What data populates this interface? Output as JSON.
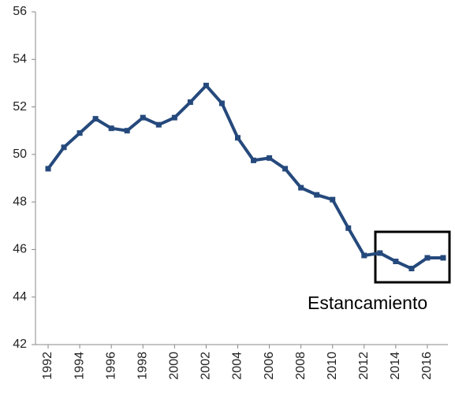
{
  "chart_data": {
    "type": "line",
    "x": [
      1992,
      1993,
      1994,
      1995,
      1996,
      1997,
      1998,
      1999,
      2000,
      2001,
      2002,
      2003,
      2004,
      2005,
      2006,
      2007,
      2008,
      2009,
      2010,
      2011,
      2012,
      2013,
      2014,
      2015,
      2016,
      2017
    ],
    "values": [
      49.4,
      50.3,
      50.9,
      51.5,
      51.1,
      51.0,
      51.55,
      51.25,
      51.55,
      52.2,
      52.9,
      52.15,
      50.7,
      49.75,
      49.85,
      49.4,
      48.6,
      48.3,
      48.1,
      46.9,
      45.75,
      45.85,
      45.5,
      45.2,
      45.65,
      45.65
    ],
    "color": "#25497c",
    "xlim": [
      1991.2,
      2017.3
    ],
    "xticks": [
      1992,
      1994,
      1996,
      1998,
      2000,
      2002,
      2004,
      2006,
      2008,
      2010,
      2012,
      2014,
      2016
    ],
    "ylim": [
      42,
      56
    ],
    "yticks": [
      42,
      44,
      46,
      48,
      50,
      52,
      54,
      56
    ],
    "annotation": "Estancamiento"
  }
}
